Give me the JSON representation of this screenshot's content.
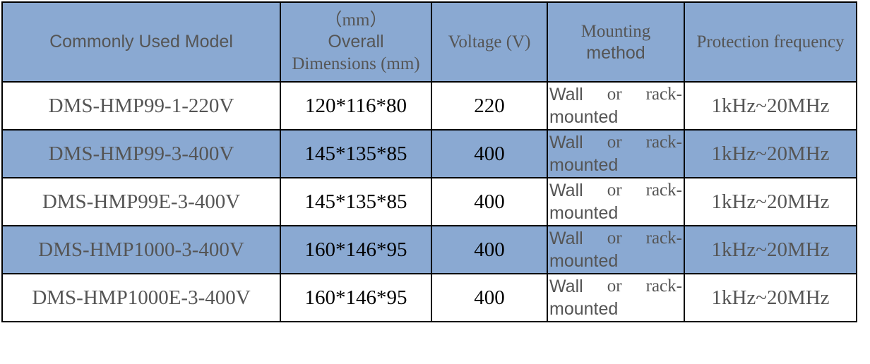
{
  "header": {
    "model": "Commonly Used Model",
    "dims_unit": "（mm）",
    "dims_line1": "Overall",
    "dims_line2": "Dimensions (mm)",
    "voltage": "Voltage (V)",
    "mount_line1": "Mounting",
    "mount_line2": "method",
    "frequency": "Protection frequency"
  },
  "colors": {
    "header_bg": "#8aa9d2",
    "alt_row_bg": "#8aa9d2",
    "text_grey": "#555555"
  },
  "rows": [
    {
      "model": "DMS-HMP99-1-220V",
      "dims": "120*116*80",
      "voltage": "220",
      "mount": [
        "Wall",
        "or",
        "rack-",
        "mounted"
      ],
      "frequency": "1kHz~20MHz"
    },
    {
      "model": "DMS-HMP99-3-400V",
      "dims": "145*135*85",
      "voltage": "400",
      "mount": [
        "Wall",
        "or",
        "rack-",
        "mounted"
      ],
      "frequency": "1kHz~20MHz"
    },
    {
      "model": "DMS-HMP99E-3-400V",
      "dims": "145*135*85",
      "voltage": "400",
      "mount": [
        "Wall",
        "or",
        "rack-",
        "mounted"
      ],
      "frequency": "1kHz~20MHz"
    },
    {
      "model": "DMS-HMP1000-3-400V",
      "dims": "160*146*95",
      "voltage": "400",
      "mount": [
        "Wall",
        "or",
        "rack-",
        "mounted"
      ],
      "frequency": "1kHz~20MHz"
    },
    {
      "model": "DMS-HMP1000E-3-400V",
      "dims": "160*146*95",
      "voltage": "400",
      "mount": [
        "Wall",
        "or",
        "rack-",
        "mounted"
      ],
      "frequency": "1kHz~20MHz"
    }
  ]
}
